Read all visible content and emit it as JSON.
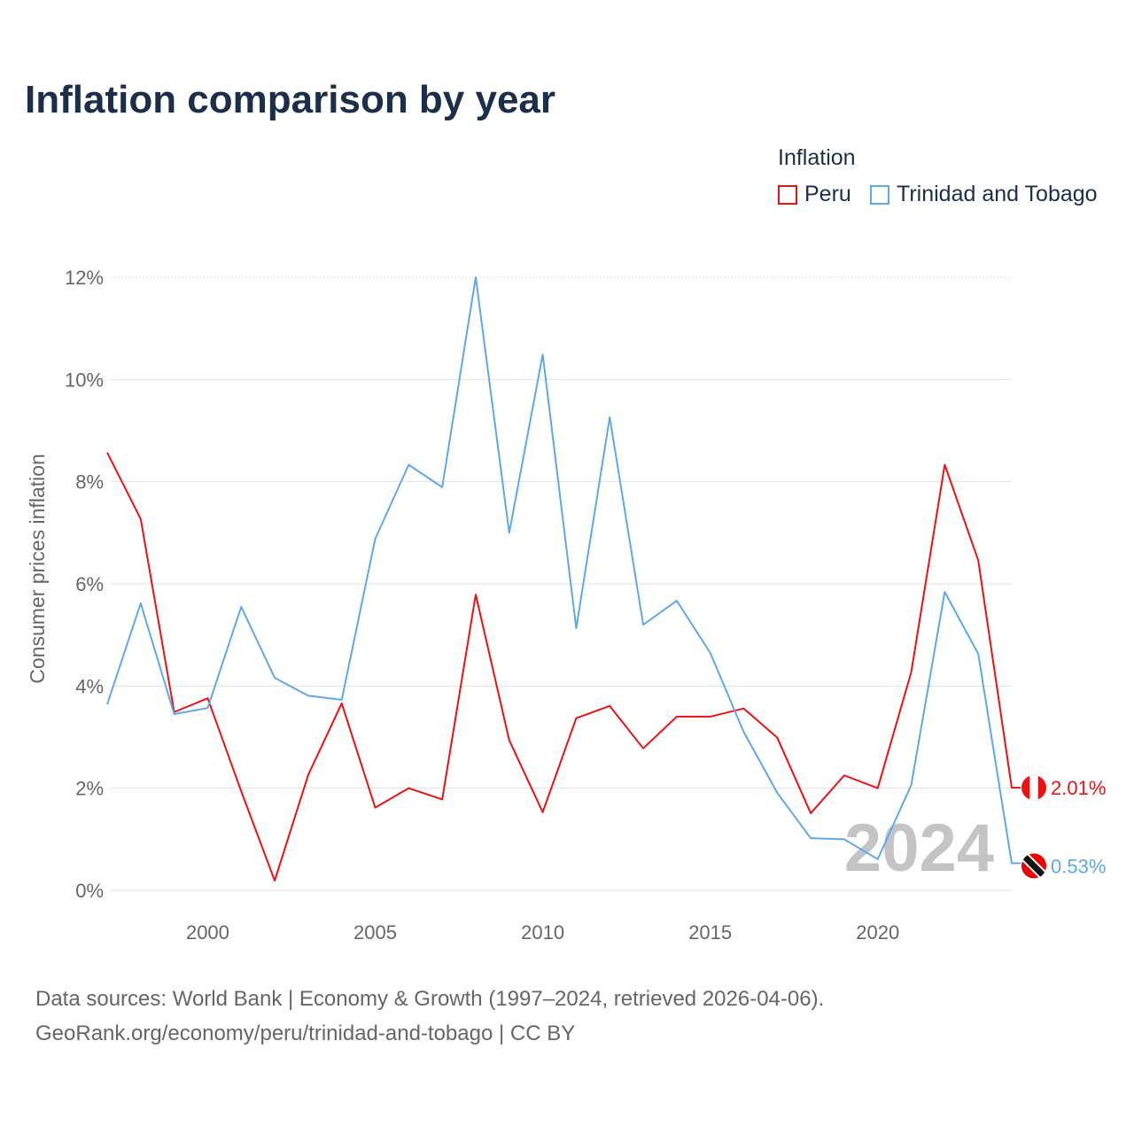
{
  "title": "Inflation comparison by year",
  "legend": {
    "title": "Inflation",
    "items": [
      {
        "name": "Peru",
        "color": "#ee1111"
      },
      {
        "name": "Trinidad and Tobago",
        "color": "#5ea8ec"
      }
    ]
  },
  "footer": {
    "line1": "Data sources: World Bank | Economy & Growth (1997–2024, retrieved 2026-04-06).",
    "line2": "GeoRank.org/economy/peru/trinidad-and-tobago | CC BY"
  },
  "chart_data": {
    "type": "line",
    "title": "Inflation comparison by year",
    "xlabel": "",
    "ylabel": "Consumer prices inflation",
    "xlim": [
      1997,
      2024
    ],
    "ylim": [
      0,
      12
    ],
    "xticks": [
      2000,
      2005,
      2010,
      2015,
      2020
    ],
    "yticks": [
      0,
      2,
      4,
      6,
      8,
      10,
      12
    ],
    "ytick_labels": [
      "0%",
      "2%",
      "4%",
      "6%",
      "8%",
      "10%",
      "12%"
    ],
    "grid": true,
    "legend_position": "top-right",
    "watermark_year": "2024",
    "x": [
      1997,
      1998,
      1999,
      2000,
      2001,
      2002,
      2003,
      2004,
      2005,
      2006,
      2007,
      2008,
      2009,
      2010,
      2011,
      2012,
      2013,
      2014,
      2015,
      2016,
      2017,
      2018,
      2019,
      2020,
      2021,
      2022,
      2023,
      2024
    ],
    "series": [
      {
        "name": "Peru",
        "color": "#ee1111",
        "end_label": "2.01%",
        "values": [
          8.57,
          7.27,
          3.49,
          3.76,
          1.94,
          0.19,
          2.26,
          3.66,
          1.62,
          2.0,
          1.78,
          5.79,
          2.94,
          1.53,
          3.37,
          3.61,
          2.78,
          3.4,
          3.4,
          3.56,
          2.99,
          1.51,
          2.25,
          2.0,
          4.27,
          8.33,
          6.46,
          2.01
        ]
      },
      {
        "name": "Trinidad and Tobago",
        "color": "#5ea8ec",
        "end_label": "0.53%",
        "values": [
          3.64,
          5.62,
          3.45,
          3.57,
          5.55,
          4.16,
          3.81,
          3.73,
          6.88,
          8.33,
          7.89,
          12.0,
          7.0,
          10.49,
          5.13,
          9.26,
          5.2,
          5.67,
          4.65,
          3.1,
          1.91,
          1.02,
          1.0,
          0.61,
          2.06,
          5.84,
          4.63,
          0.53
        ]
      }
    ]
  }
}
